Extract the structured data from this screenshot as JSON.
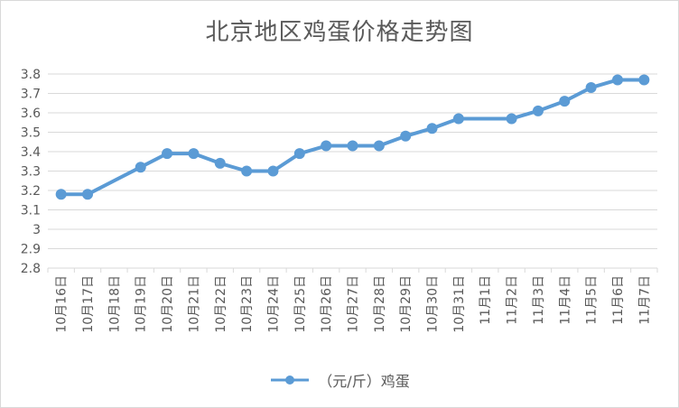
{
  "chart_data": {
    "type": "line",
    "title": "北京地区鸡蛋价格走势图",
    "xlabel": "",
    "ylabel": "",
    "ylim": [
      2.8,
      3.8
    ],
    "yticks": [
      "2.8",
      "2.9",
      "3",
      "3.1",
      "3.2",
      "3.3",
      "3.4",
      "3.5",
      "3.6",
      "3.7",
      "3.8"
    ],
    "grid": true,
    "legend_position": "bottom",
    "categories": [
      "10月16日",
      "10月17日",
      "10月18日",
      "10月19日",
      "10月20日",
      "10月21日",
      "10月22日",
      "10月23日",
      "10月24日",
      "10月25日",
      "10月26日",
      "10月27日",
      "10月28日",
      "10月29日",
      "10月30日",
      "10月31日",
      "11月1日",
      "11月2日",
      "11月3日",
      "11月4日",
      "11月5日",
      "11月6日",
      "11月7日"
    ],
    "series": [
      {
        "name": "（元/斤）鸡蛋",
        "color": "#5b9bd5",
        "values": [
          3.18,
          3.18,
          null,
          3.32,
          3.39,
          3.39,
          3.34,
          3.3,
          3.3,
          3.39,
          3.43,
          3.43,
          3.43,
          3.48,
          3.52,
          3.57,
          null,
          3.57,
          3.61,
          3.66,
          3.73,
          3.77,
          3.77
        ]
      }
    ]
  }
}
